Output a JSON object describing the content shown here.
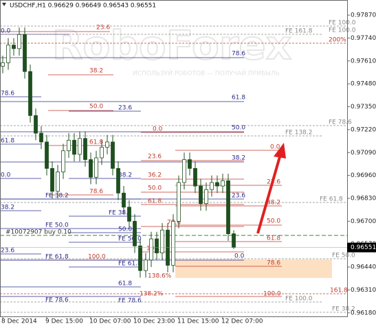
{
  "chart_data": {
    "type": "candlestick",
    "title": "USDCHF,H1  0.96629 0.96649 0.96543 0.96551",
    "watermark": "RoboForex",
    "watermark_tagline": "ИСПОЛЬЗУЙ РОБОТОВ — ПОЛУЧАЙ ПРИБЫЛЬ",
    "color": "#1f4f1f",
    "categories": [
      "8 Dec 2014",
      null,
      null,
      null,
      null,
      null,
      null,
      null,
      "9 Dec 15:00",
      null,
      null,
      null,
      null,
      null,
      null,
      null,
      "10 Dec 07:00",
      null,
      null,
      null,
      null,
      null,
      null,
      null,
      "10 Dec 23:00",
      null,
      null,
      null,
      null,
      null,
      null,
      null,
      "11 Dec 15:00",
      null,
      null,
      null,
      null,
      null,
      null,
      null,
      "12 Dec 07:00",
      null,
      null
    ],
    "open": [
      0.9758,
      0.976,
      0.977,
      0.9768,
      0.9776,
      0.9755,
      0.973,
      0.972,
      0.9715,
      0.97,
      0.9687,
      0.9698,
      0.971,
      0.9716,
      0.9708,
      0.9717,
      0.9705,
      0.9695,
      0.9706,
      0.9712,
      0.9715,
      0.97,
      0.9686,
      0.9678,
      0.967,
      0.9656,
      0.9642,
      0.9648,
      0.966,
      0.9652,
      0.9665,
      0.9645,
      0.967,
      0.9692,
      0.9705,
      0.97,
      0.969,
      0.968,
      0.9688,
      0.9692,
      0.969,
      0.9693,
      0.96629
    ],
    "high": [
      0.9764,
      0.9774,
      0.9774,
      0.978,
      0.978,
      0.9759,
      0.9734,
      0.9724,
      0.9719,
      0.9704,
      0.9702,
      0.9714,
      0.972,
      0.972,
      0.9721,
      0.9721,
      0.9709,
      0.971,
      0.9716,
      0.9719,
      0.9719,
      0.9704,
      0.969,
      0.9682,
      0.9674,
      0.966,
      0.9652,
      0.9664,
      0.9664,
      0.9669,
      0.9669,
      0.9674,
      0.9696,
      0.9709,
      0.9709,
      0.9704,
      0.9694,
      0.9692,
      0.9696,
      0.9696,
      0.9697,
      0.9697,
      0.96649
    ],
    "low": [
      0.9754,
      0.9756,
      0.9764,
      0.9764,
      0.9751,
      0.9726,
      0.9716,
      0.9711,
      0.9696,
      0.9683,
      0.9683,
      0.9694,
      0.9706,
      0.9704,
      0.9704,
      0.9701,
      0.9691,
      0.9691,
      0.9702,
      0.9708,
      0.9696,
      0.9682,
      0.9674,
      0.9666,
      0.9652,
      0.9638,
      0.9638,
      0.9644,
      0.9648,
      0.9648,
      0.9641,
      0.9641,
      0.9666,
      0.9688,
      0.9696,
      0.9686,
      0.9676,
      0.9676,
      0.9684,
      0.9686,
      0.9686,
      0.96589,
      0.96543
    ],
    "close": [
      0.976,
      0.977,
      0.9768,
      0.9776,
      0.9755,
      0.973,
      0.972,
      0.9715,
      0.97,
      0.9687,
      0.9698,
      0.971,
      0.9716,
      0.9708,
      0.9717,
      0.9705,
      0.9695,
      0.9706,
      0.9712,
      0.9715,
      0.97,
      0.9686,
      0.9678,
      0.967,
      0.9656,
      0.9642,
      0.9648,
      0.966,
      0.9652,
      0.9665,
      0.9645,
      0.967,
      0.9692,
      0.9705,
      0.97,
      0.969,
      0.968,
      0.9688,
      0.9692,
      0.969,
      0.9693,
      0.96629,
      0.96551
    ],
    "ylim": [
      0.96156,
      0.97956
    ],
    "yticks": [
      {
        "value": 0.9787,
        "label": "0.97870"
      },
      {
        "value": 0.9774,
        "label": "0.97740"
      },
      {
        "value": 0.9761,
        "label": "0.97610"
      },
      {
        "value": 0.9748,
        "label": "0.97480"
      },
      {
        "value": 0.9735,
        "label": "0.97350"
      },
      {
        "value": 0.9722,
        "label": "0.97220"
      },
      {
        "value": 0.9709,
        "label": "0.97090"
      },
      {
        "value": 0.9696,
        "label": "0.96960"
      },
      {
        "value": 0.9683,
        "label": "0.96830"
      },
      {
        "value": 0.967,
        "label": "0.96700"
      },
      {
        "value": 0.9657,
        "label": "0.96570"
      },
      {
        "value": 0.9644,
        "label": "0.96440"
      },
      {
        "value": 0.9631,
        "label": "0.96310"
      },
      {
        "value": 0.9618,
        "label": "0.96180"
      }
    ],
    "last_price": {
      "value": 0.96551,
      "label": "0.96551"
    },
    "annotations": [
      "23.6",
      "0.0",
      "FE 100.0",
      "FE 161.8",
      "FE 100.0",
      "200%",
      "78.6",
      "38.2",
      "78.6",
      "61.8",
      "50.0",
      "23.6",
      "FE 78.6",
      "0.0",
      "50.0",
      "FE 138.2",
      "61.8",
      "61.8",
      "0.0",
      "23.6",
      "38.2",
      "0.0",
      "38.2",
      "36.2",
      "23.6",
      "50.0",
      "78.6",
      "FE 38.2",
      "23.6",
      "61.8",
      "FE 61.8",
      "38.2",
      "38.2",
      "FE 38.2",
      "78.6",
      "50.0",
      "FE 50.0",
      "50.0",
      "#10072907 buy 0.10",
      "FE 50.0",
      "61.8",
      "100.0",
      "23.6",
      "FE 61.8",
      "100.0",
      "0.0",
      "FE 50.0",
      "FE 61.8",
      "78.6",
      "138.6%",
      "61.8",
      "161.8",
      "138.2%",
      "100.0",
      "FE 78.6",
      "FE 78.6",
      "FE 100.0",
      "FE 38.2"
    ]
  }
}
